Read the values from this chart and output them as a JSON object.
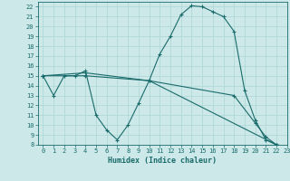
{
  "xlabel": "Humidex (Indice chaleur)",
  "xlim": [
    -0.5,
    23
  ],
  "ylim": [
    8,
    22.5
  ],
  "xticks": [
    0,
    1,
    2,
    3,
    4,
    5,
    6,
    7,
    8,
    9,
    10,
    11,
    12,
    13,
    14,
    15,
    16,
    17,
    18,
    19,
    20,
    21,
    22,
    23
  ],
  "yticks": [
    8,
    9,
    10,
    11,
    12,
    13,
    14,
    15,
    16,
    17,
    18,
    19,
    20,
    21,
    22
  ],
  "bg_color": "#cce8e8",
  "line_color": "#1a6b6b",
  "grid_color": "#b0d8d8",
  "lines": [
    {
      "x": [
        0,
        1,
        2,
        3,
        4,
        5,
        6,
        7,
        8,
        9,
        10,
        11,
        12,
        13,
        14,
        15,
        16,
        17,
        18,
        19,
        20,
        21,
        22,
        23
      ],
      "y": [
        15.0,
        13.0,
        15.0,
        15.0,
        15.5,
        11.0,
        9.5,
        8.5,
        10.0,
        12.2,
        14.5,
        17.2,
        19.0,
        21.2,
        22.1,
        22.0,
        21.5,
        21.0,
        19.5,
        13.5,
        10.5,
        8.5,
        8.0,
        7.8
      ]
    },
    {
      "x": [
        0,
        4,
        10,
        22,
        23
      ],
      "y": [
        15.0,
        15.0,
        14.5,
        8.0,
        7.8
      ]
    },
    {
      "x": [
        0,
        4,
        10,
        18,
        20,
        21,
        22,
        23
      ],
      "y": [
        15.0,
        15.3,
        14.5,
        13.0,
        10.2,
        8.8,
        8.0,
        7.8
      ]
    }
  ],
  "marker": "+",
  "markersize": 3,
  "linewidth": 0.8
}
